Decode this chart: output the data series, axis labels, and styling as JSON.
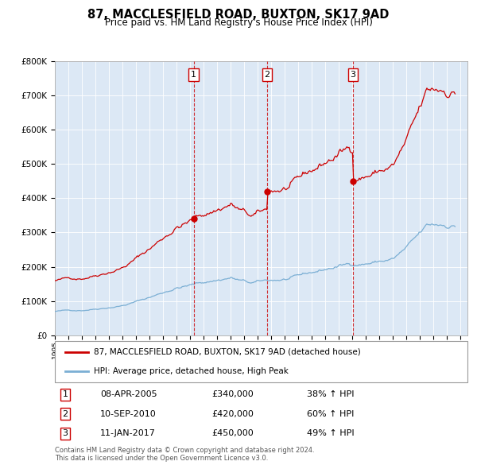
{
  "title": "87, MACCLESFIELD ROAD, BUXTON, SK17 9AD",
  "subtitle": "Price paid vs. HM Land Registry's House Price Index (HPI)",
  "ylabel_ticks": [
    "£0",
    "£100K",
    "£200K",
    "£300K",
    "£400K",
    "£500K",
    "£600K",
    "£700K",
    "£800K"
  ],
  "ytick_values": [
    0,
    100000,
    200000,
    300000,
    400000,
    500000,
    600000,
    700000,
    800000
  ],
  "ylim": [
    0,
    800000
  ],
  "xlim_start": 1995.0,
  "xlim_end": 2025.5,
  "background_color": "#ffffff",
  "plot_bg_color": "#dce8f5",
  "grid_color": "#ffffff",
  "hpi_line_color": "#7bafd4",
  "property_line_color": "#cc0000",
  "purchase_marker_color": "#cc0000",
  "purchase_dates": [
    2005.27,
    2010.7,
    2017.03
  ],
  "purchase_prices": [
    340000,
    420000,
    450000
  ],
  "purchase_labels": [
    "1",
    "2",
    "3"
  ],
  "legend_property": "87, MACCLESFIELD ROAD, BUXTON, SK17 9AD (detached house)",
  "legend_hpi": "HPI: Average price, detached house, High Peak",
  "table_rows": [
    [
      "1",
      "08-APR-2005",
      "£340,000",
      "38% ↑ HPI"
    ],
    [
      "2",
      "10-SEP-2010",
      "£420,000",
      "60% ↑ HPI"
    ],
    [
      "3",
      "11-JAN-2017",
      "£450,000",
      "49% ↑ HPI"
    ]
  ],
  "footer": "Contains HM Land Registry data © Crown copyright and database right 2024.\nThis data is licensed under the Open Government Licence v3.0."
}
